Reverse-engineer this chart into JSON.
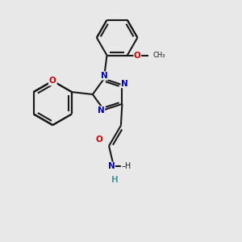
{
  "background_color": "#e8e8e8",
  "bond_color": "#1a1a1a",
  "N_color": "#0000cc",
  "O_color": "#cc0000",
  "H_color": "#4d9999",
  "line_width": 1.5,
  "figsize": [
    3.0,
    3.0
  ],
  "dpi": 100,
  "xlim": [
    0,
    10
  ],
  "ylim": [
    0,
    10
  ]
}
